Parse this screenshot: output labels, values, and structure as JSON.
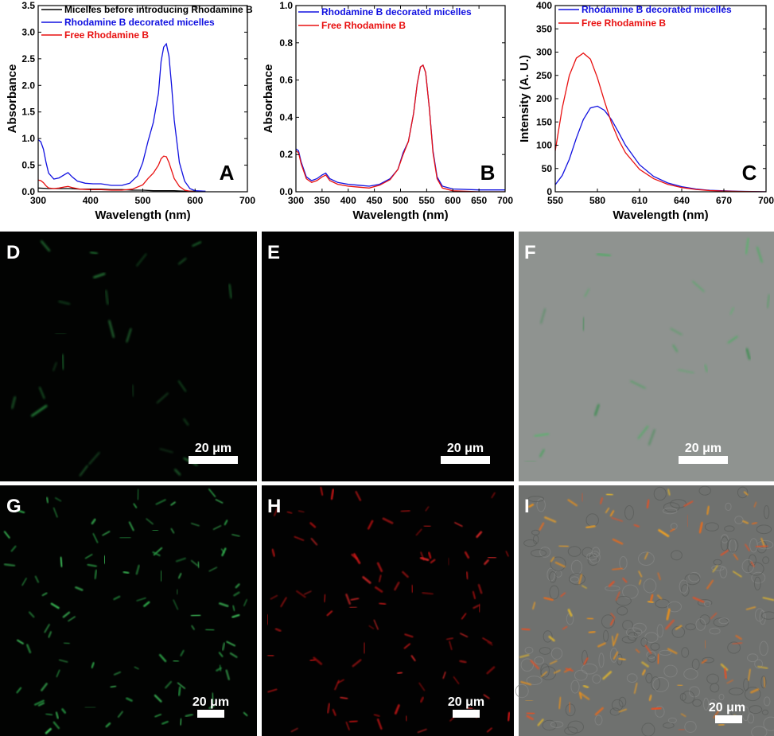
{
  "colors": {
    "black_series": "#000000",
    "blue_series": "#1010e0",
    "red_series": "#e81010",
    "green_stain": "#2ea84a",
    "red_stain": "#e01818",
    "orange_overlay": "#e8901a"
  },
  "chart_data": [
    {
      "type": "line",
      "panel_label": "A",
      "xlabel": "Wavelength (nm)",
      "ylabel": "Absorbance",
      "xlim": [
        300,
        700
      ],
      "ylim": [
        0,
        3.5
      ],
      "xticks": [
        300,
        400,
        500,
        600,
        700
      ],
      "yticks": [
        0.0,
        0.5,
        1.0,
        1.5,
        2.0,
        2.5,
        3.0,
        3.5
      ],
      "ytick_labels": [
        "0.0",
        "0.5",
        "1.0",
        "1.5",
        "2.0",
        "2.5",
        "3.0",
        "3.5"
      ],
      "legend_position": "top-left",
      "series": [
        {
          "name": "Micelles before introducing Rhodamine B",
          "color": "#000000",
          "x": [
            300,
            320,
            340,
            360,
            380,
            400,
            420,
            440,
            460,
            480,
            500,
            520,
            540,
            560,
            580,
            600
          ],
          "y": [
            0.07,
            0.06,
            0.06,
            0.06,
            0.05,
            0.05,
            0.05,
            0.04,
            0.04,
            0.03,
            0.03,
            0.02,
            0.02,
            0.02,
            0.01,
            0.01
          ]
        },
        {
          "name": "Rhodamine B decorated micelles",
          "color": "#1010e0",
          "x": [
            300,
            305,
            310,
            315,
            320,
            330,
            340,
            350,
            357,
            365,
            375,
            390,
            405,
            420,
            440,
            460,
            475,
            490,
            500,
            510,
            520,
            530,
            535,
            540,
            545,
            550,
            555,
            560,
            570,
            580,
            590,
            600,
            620
          ],
          "y": [
            0.98,
            0.94,
            0.8,
            0.55,
            0.35,
            0.24,
            0.26,
            0.32,
            0.36,
            0.28,
            0.2,
            0.16,
            0.15,
            0.15,
            0.12,
            0.12,
            0.16,
            0.3,
            0.55,
            0.95,
            1.3,
            1.85,
            2.45,
            2.72,
            2.78,
            2.55,
            2.0,
            1.35,
            0.55,
            0.2,
            0.06,
            0.02,
            0.01
          ]
        },
        {
          "name": "Free Rhodamine B",
          "color": "#e81010",
          "x": [
            300,
            305,
            310,
            315,
            320,
            330,
            340,
            350,
            357,
            365,
            380,
            400,
            420,
            440,
            460,
            480,
            500,
            510,
            520,
            530,
            535,
            540,
            545,
            550,
            555,
            560,
            570,
            580,
            590,
            600
          ],
          "y": [
            0.22,
            0.21,
            0.17,
            0.11,
            0.07,
            0.06,
            0.07,
            0.09,
            0.1,
            0.08,
            0.05,
            0.04,
            0.04,
            0.03,
            0.03,
            0.05,
            0.13,
            0.25,
            0.35,
            0.5,
            0.62,
            0.67,
            0.66,
            0.55,
            0.4,
            0.25,
            0.1,
            0.03,
            0.01,
            0.0
          ]
        }
      ]
    },
    {
      "type": "line",
      "panel_label": "B",
      "xlabel": "Wavelength (nm)",
      "ylabel": "Absorbance",
      "xlim": [
        300,
        700
      ],
      "ylim": [
        0,
        1.0
      ],
      "xticks": [
        300,
        350,
        400,
        450,
        500,
        550,
        600,
        650,
        700
      ],
      "yticks": [
        0.0,
        0.2,
        0.4,
        0.6,
        0.8,
        1.0
      ],
      "ytick_labels": [
        "0.0",
        "0.2",
        "0.4",
        "0.6",
        "0.8",
        "1.0"
      ],
      "legend_position": "top-left",
      "series": [
        {
          "name": "Rhodamine B decorated micelles",
          "color": "#1010e0",
          "x": [
            300,
            305,
            310,
            320,
            330,
            340,
            350,
            357,
            365,
            380,
            400,
            420,
            440,
            460,
            480,
            495,
            505,
            515,
            525,
            532,
            538,
            543,
            548,
            555,
            562,
            570,
            580,
            600,
            650,
            700
          ],
          "y": [
            0.23,
            0.22,
            0.16,
            0.08,
            0.06,
            0.07,
            0.09,
            0.1,
            0.07,
            0.05,
            0.04,
            0.035,
            0.03,
            0.04,
            0.07,
            0.12,
            0.21,
            0.27,
            0.42,
            0.58,
            0.67,
            0.68,
            0.64,
            0.45,
            0.22,
            0.08,
            0.03,
            0.015,
            0.01,
            0.01
          ]
        },
        {
          "name": "Free Rhodamine B",
          "color": "#e81010",
          "x": [
            300,
            305,
            310,
            320,
            330,
            340,
            350,
            357,
            365,
            380,
            400,
            420,
            440,
            460,
            480,
            495,
            505,
            515,
            525,
            532,
            538,
            543,
            548,
            555,
            562,
            570,
            580,
            600,
            650,
            700
          ],
          "y": [
            0.22,
            0.21,
            0.15,
            0.07,
            0.05,
            0.06,
            0.08,
            0.09,
            0.06,
            0.04,
            0.03,
            0.025,
            0.02,
            0.035,
            0.065,
            0.12,
            0.2,
            0.27,
            0.42,
            0.58,
            0.67,
            0.68,
            0.64,
            0.45,
            0.21,
            0.07,
            0.02,
            0.005,
            0.0,
            0.0
          ]
        }
      ]
    },
    {
      "type": "line",
      "panel_label": "C",
      "xlabel": "Wavelength (nm)",
      "ylabel": "Intensity (A. U.)",
      "xlim": [
        550,
        700
      ],
      "ylim": [
        0,
        400
      ],
      "xticks": [
        550,
        580,
        610,
        640,
        670,
        700
      ],
      "yticks": [
        0,
        50,
        100,
        150,
        200,
        250,
        300,
        350,
        400
      ],
      "ytick_labels": [
        "0",
        "50",
        "100",
        "150",
        "200",
        "250",
        "300",
        "350",
        "400"
      ],
      "legend_position": "top-left",
      "series": [
        {
          "name": "Rhodamine B decorated micelles",
          "color": "#1010e0",
          "x": [
            550,
            555,
            560,
            565,
            570,
            575,
            580,
            585,
            590,
            595,
            600,
            610,
            620,
            630,
            640,
            650,
            660,
            670,
            680,
            690,
            700
          ],
          "y": [
            15,
            35,
            70,
            115,
            155,
            180,
            184,
            175,
            155,
            128,
            100,
            58,
            33,
            19,
            11,
            6,
            3,
            2,
            1,
            0.5,
            0
          ]
        },
        {
          "name": "Free Rhodamine B",
          "color": "#e81010",
          "x": [
            550,
            555,
            560,
            565,
            570,
            575,
            580,
            585,
            590,
            595,
            600,
            610,
            620,
            630,
            640,
            650,
            660,
            670,
            680,
            690,
            700
          ],
          "y": [
            88,
            180,
            250,
            287,
            298,
            285,
            245,
            195,
            148,
            112,
            84,
            48,
            28,
            16,
            9,
            5,
            2.5,
            1.5,
            0.8,
            0.3,
            0
          ]
        }
      ]
    }
  ],
  "image_panels": [
    {
      "label": "D",
      "scale": "20 μm"
    },
    {
      "label": "E",
      "scale": "20 μm"
    },
    {
      "label": "F",
      "scale": "20 μm"
    },
    {
      "label": "G",
      "scale": "20 μm"
    },
    {
      "label": "H",
      "scale": "20 μm"
    },
    {
      "label": "I",
      "scale": "20 μm"
    }
  ]
}
